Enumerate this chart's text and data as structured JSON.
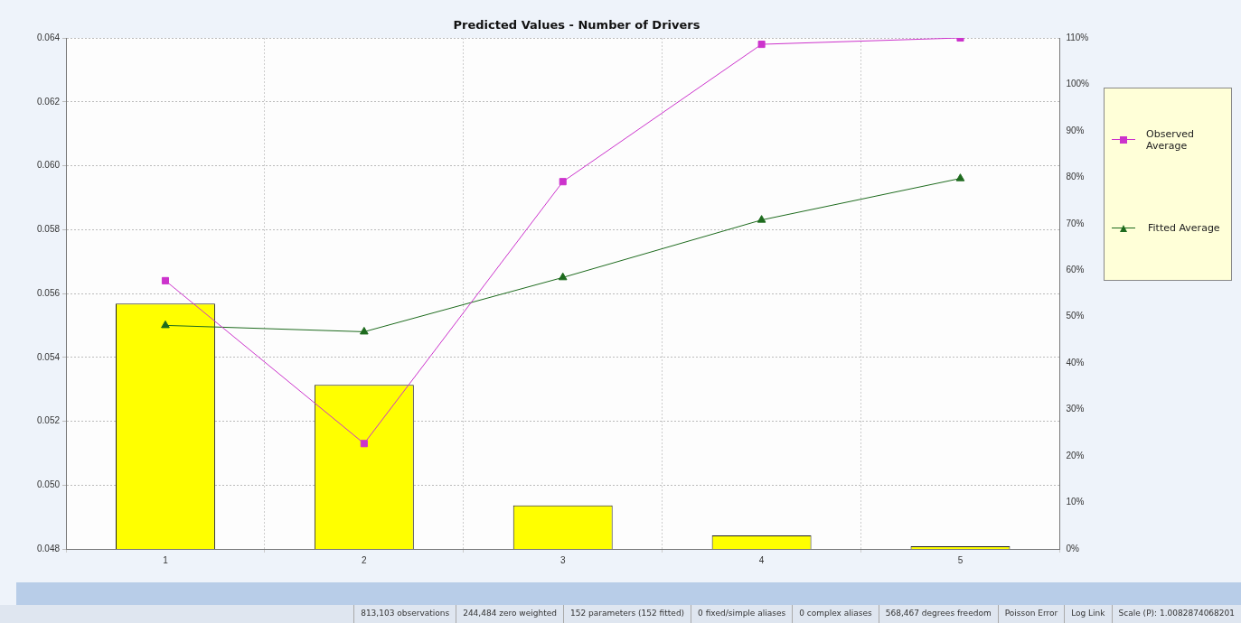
{
  "chart_data": {
    "type": "bar",
    "title": "Predicted Values - Number of Drivers",
    "categories": [
      "1",
      "2",
      "3",
      "4",
      "5"
    ],
    "series": [
      {
        "axis": "y2",
        "color": "#ffff00",
        "values": [
          52.8,
          35.3,
          9.4,
          2.9,
          0.6
        ]
      },
      {
        "type": "line",
        "name": "Observed Average",
        "color": "#cc33cc",
        "marker": "square",
        "values": [
          0.0564,
          0.0513,
          0.0595,
          0.0638,
          0.064
        ]
      },
      {
        "type": "line",
        "name": "Fitted Average",
        "color": "#1e6b1e",
        "marker": "triangle",
        "values": [
          0.055,
          0.0548,
          0.0565,
          0.0583,
          0.0596
        ]
      }
    ],
    "ylim": [
      0.048,
      0.064
    ],
    "yticks": [
      {
        "value": 0.048,
        "label": "0.048"
      },
      {
        "value": 0.05,
        "label": "0.050"
      },
      {
        "value": 0.052,
        "label": "0.052"
      },
      {
        "value": 0.054,
        "label": "0.054"
      },
      {
        "value": 0.056,
        "label": "0.056"
      },
      {
        "value": 0.058,
        "label": "0.058"
      },
      {
        "value": 0.06,
        "label": "0.060"
      },
      {
        "value": 0.062,
        "label": "0.062"
      },
      {
        "value": 0.064,
        "label": "0.064"
      }
    ],
    "y2lim": [
      0,
      110
    ],
    "y2ticks": [
      {
        "value": 0,
        "label": "0%"
      },
      {
        "value": 10,
        "label": "10%"
      },
      {
        "value": 20,
        "label": "20%"
      },
      {
        "value": 30,
        "label": "30%"
      },
      {
        "value": 40,
        "label": "40%"
      },
      {
        "value": 50,
        "label": "50%"
      },
      {
        "value": 60,
        "label": "60%"
      },
      {
        "value": 70,
        "label": "70%"
      },
      {
        "value": 80,
        "label": "80%"
      },
      {
        "value": 90,
        "label": "90%"
      },
      {
        "value": 100,
        "label": "100%"
      },
      {
        "value": 110,
        "label": "110%"
      }
    ],
    "grid": true,
    "legend": "right",
    "annotations": [
      "813,103 observations",
      "244,484 zero weighted",
      "152 parameters (152 fitted)",
      "0 fixed/simple aliases",
      "0 complex aliases",
      "568,467 degrees freedom",
      "Poisson Error",
      "Log Link",
      "Scale (P): 1.0082874068201"
    ]
  }
}
